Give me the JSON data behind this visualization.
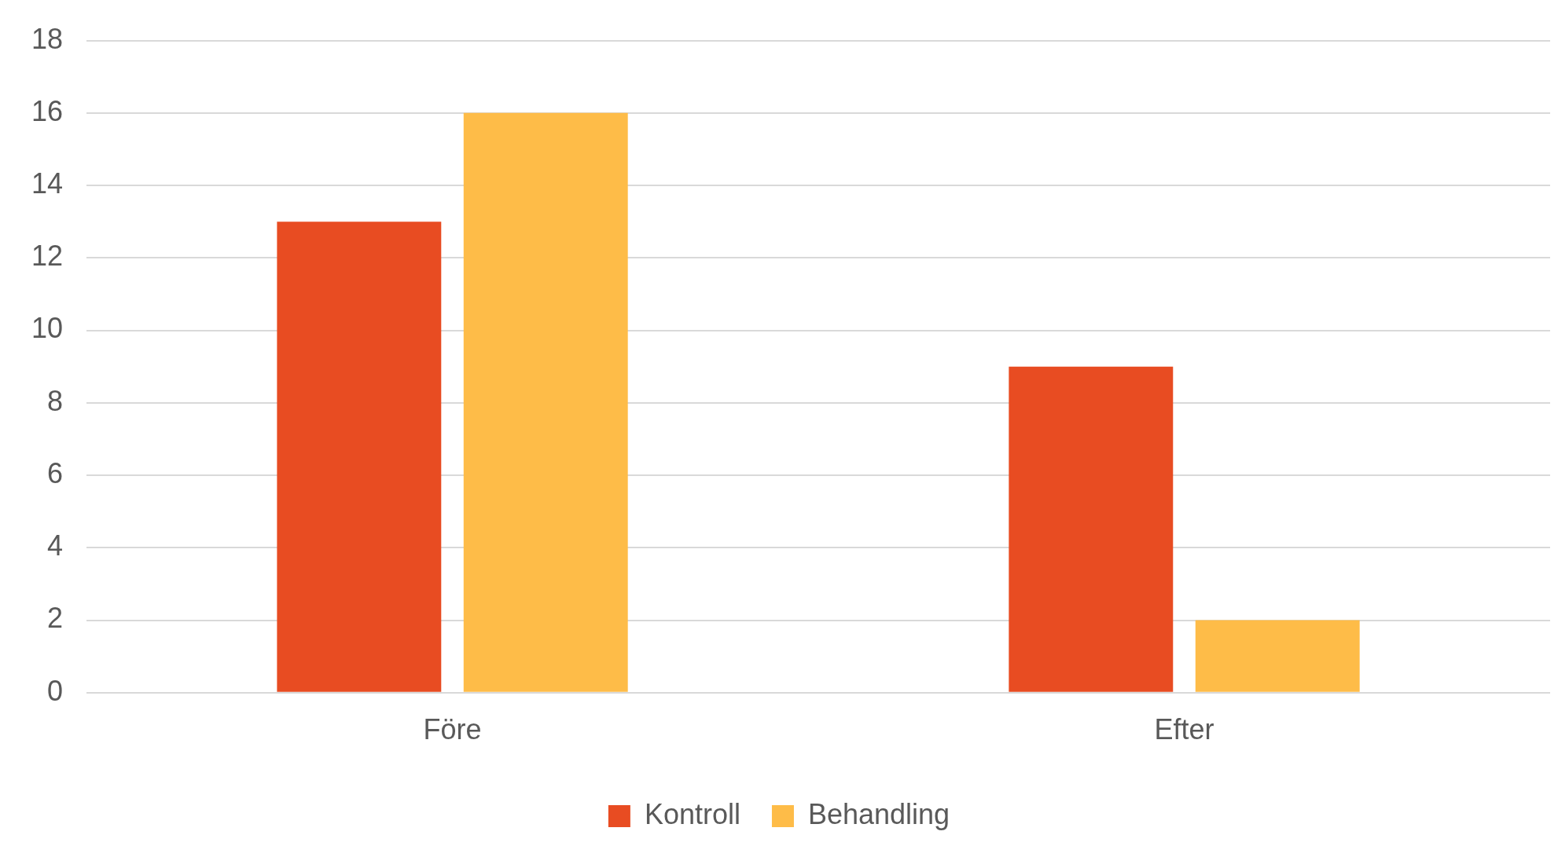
{
  "chart_data": {
    "type": "bar",
    "categories": [
      "Före",
      "Efter"
    ],
    "series": [
      {
        "name": "Kontroll",
        "color": "#e84c22",
        "values": [
          13,
          9
        ]
      },
      {
        "name": "Behandling",
        "color": "#febc48",
        "values": [
          16,
          2
        ]
      }
    ],
    "ylim": [
      0,
      18
    ],
    "yticks": [
      0,
      2,
      4,
      6,
      8,
      10,
      12,
      14,
      16,
      18
    ],
    "grid": "y",
    "legend": "bottom"
  }
}
